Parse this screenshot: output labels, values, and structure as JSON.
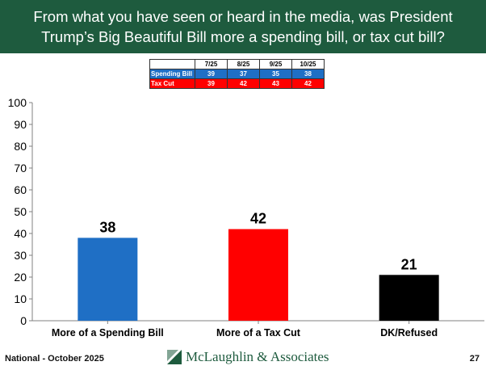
{
  "header": {
    "title_line1": "From what you have seen or heard in the media, was President",
    "title_line2": "Trump’s Big Beautiful Bill more a spending bill, or tax cut bill?"
  },
  "trend_table": {
    "columns": [
      "7/25",
      "8/25",
      "9/25",
      "10/25"
    ],
    "rows": [
      {
        "label": "Spending Bill",
        "values": [
          "39",
          "37",
          "35",
          "38"
        ]
      },
      {
        "label": "Tax Cut",
        "values": [
          "39",
          "42",
          "43",
          "42"
        ]
      }
    ]
  },
  "chart_data": {
    "type": "bar",
    "categories": [
      "More of a Spending Bill",
      "More of a Tax Cut",
      "DK/Refused"
    ],
    "values": [
      38,
      42,
      21
    ],
    "colors": [
      "#1f6fc5",
      "#ff0000",
      "#000000"
    ],
    "ylim": [
      0,
      100
    ],
    "yticks": [
      0,
      10,
      20,
      30,
      40,
      50,
      60,
      70,
      80,
      90,
      100
    ],
    "grid": false
  },
  "footer": {
    "left": "National - October 2025",
    "brand": "McLaughlin & Associates",
    "page_number": "27"
  },
  "colors": {
    "header_bg": "#1e5b3e",
    "brand_green": "#1e5b3e"
  }
}
